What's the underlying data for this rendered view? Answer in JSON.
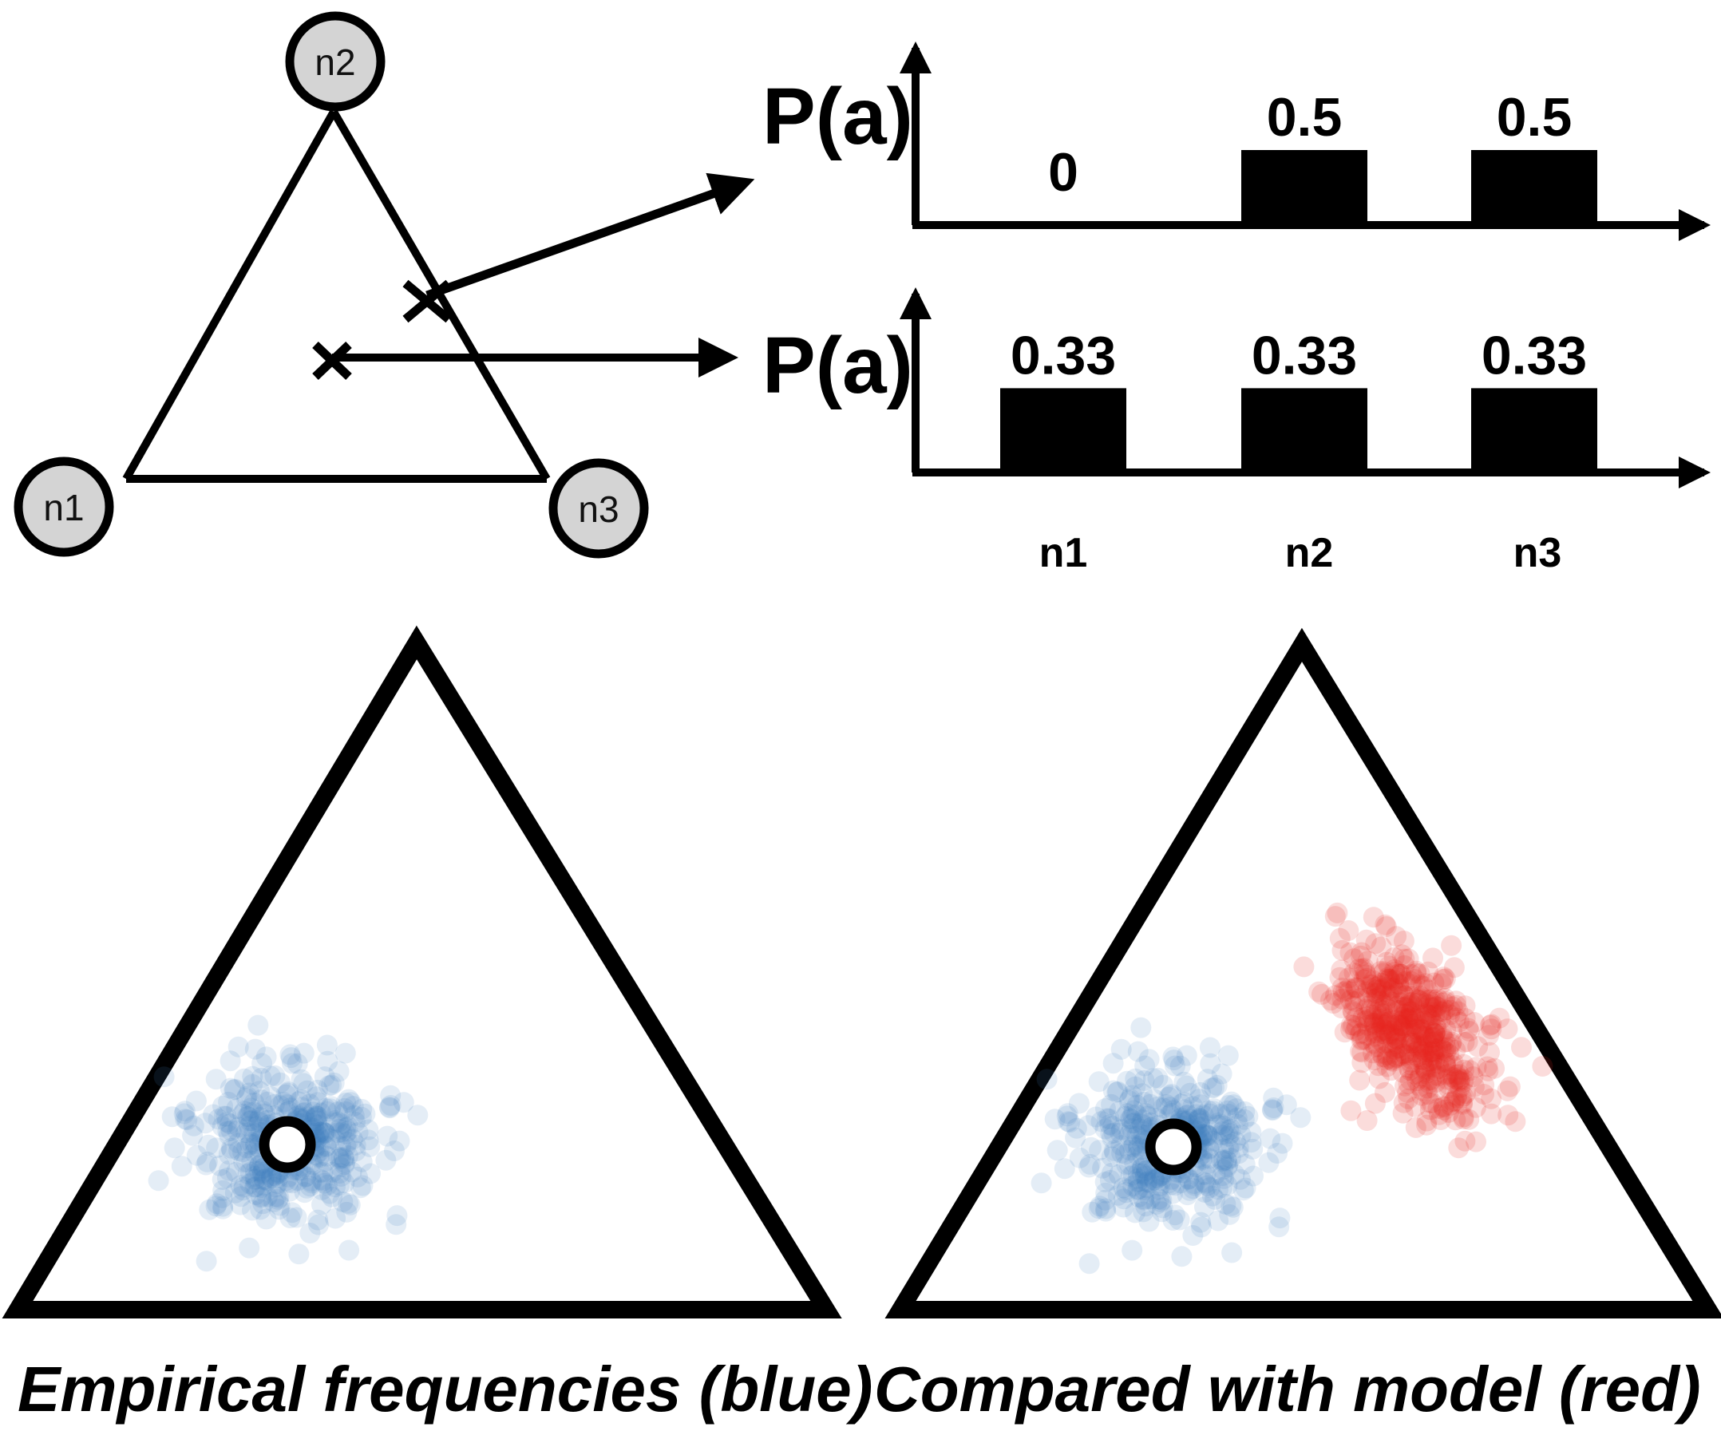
{
  "nodes": {
    "n1": "n1",
    "n2": "n2",
    "n3": "n3"
  },
  "chart_data": [
    {
      "type": "bar",
      "ylabel": "P(a)",
      "categories": [
        "n1",
        "n2",
        "n3"
      ],
      "values": [
        0,
        0.5,
        0.5
      ],
      "value_labels": [
        "0",
        "0.5",
        "0.5"
      ]
    },
    {
      "type": "bar",
      "ylabel": "P(a)",
      "categories": [
        "n1",
        "n2",
        "n3"
      ],
      "values": [
        0.33,
        0.33,
        0.33
      ],
      "value_labels": [
        "0.33",
        "0.33",
        "0.33"
      ]
    }
  ],
  "captions": {
    "left": "Empirical frequencies (blue)",
    "right": "Compared with model (red)"
  },
  "colors": {
    "empirical": "#3f7ec0",
    "model": "#e8271e",
    "node_fill": "#d4d4d4",
    "ink": "#000000"
  }
}
